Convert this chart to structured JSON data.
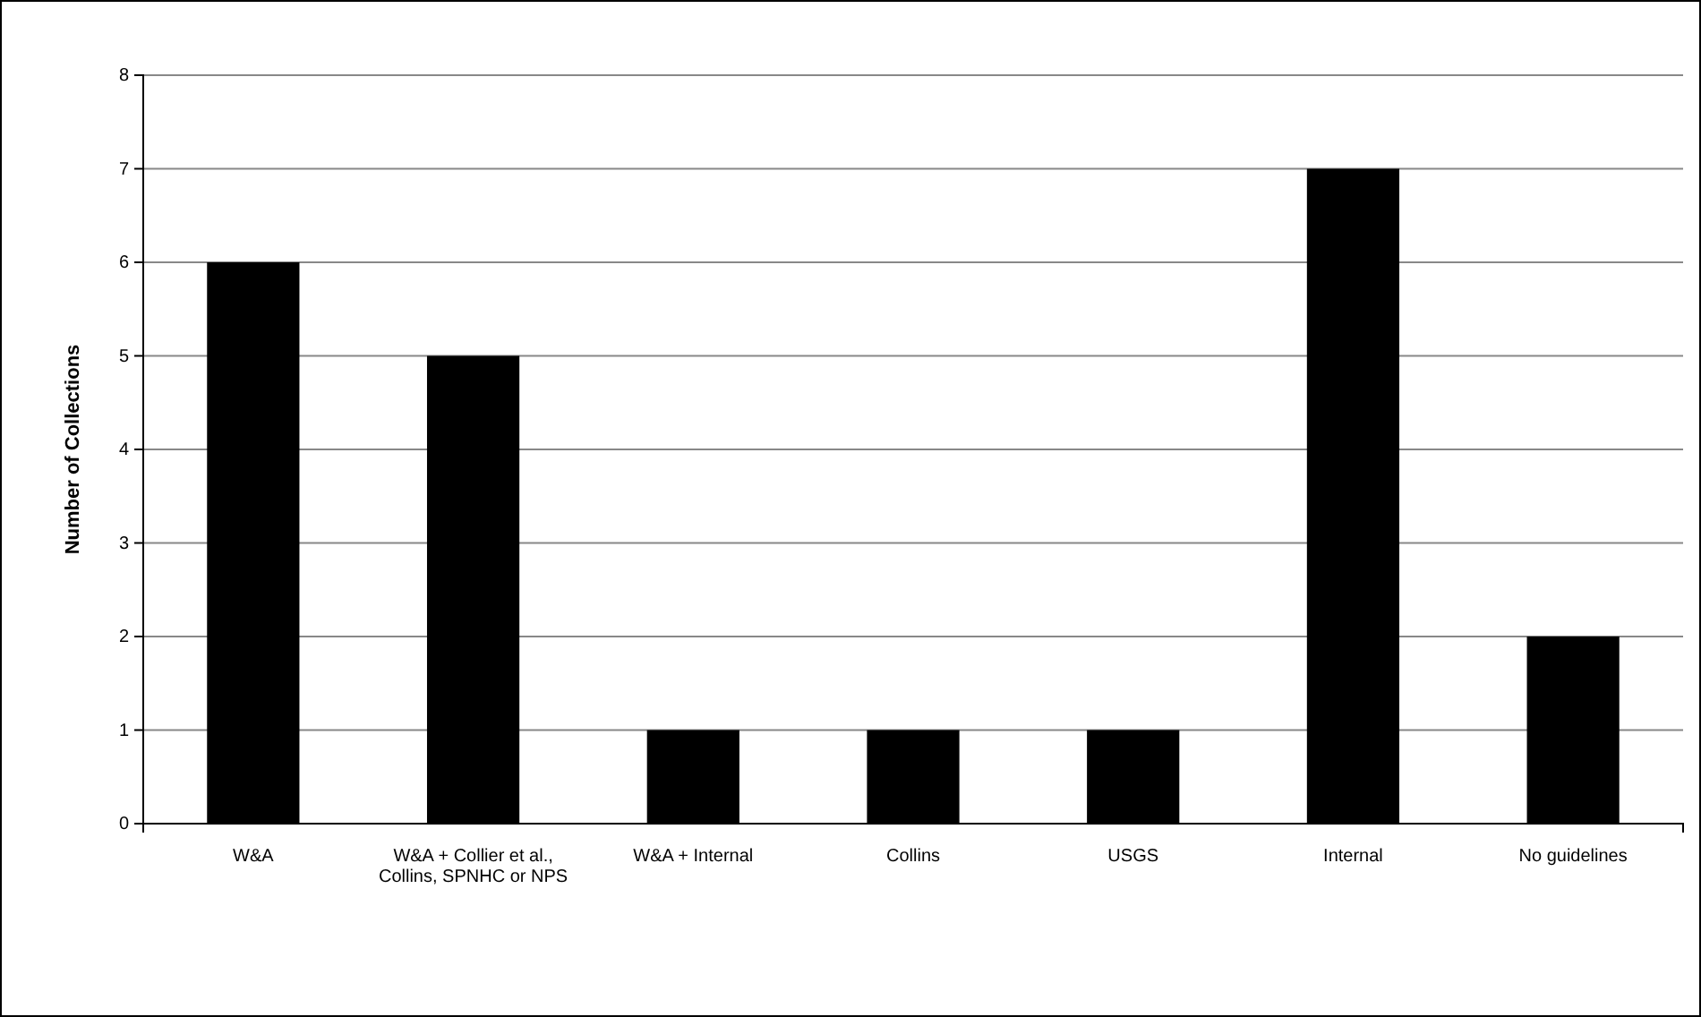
{
  "chart_data": {
    "type": "bar",
    "ylabel": "Number of Collections",
    "categories": [
      "W&A",
      "W&A + Collier et al., Collins, SPNHC or NPS",
      "W&A + Internal",
      "Collins",
      "USGS",
      "Internal",
      "No guidelines"
    ],
    "values": [
      6,
      5,
      1,
      1,
      1,
      7,
      2
    ],
    "color": "#000000",
    "ylim": [
      0,
      8
    ],
    "yticks": [
      0,
      1,
      2,
      3,
      4,
      5,
      6,
      7,
      8
    ],
    "grid": "y"
  }
}
